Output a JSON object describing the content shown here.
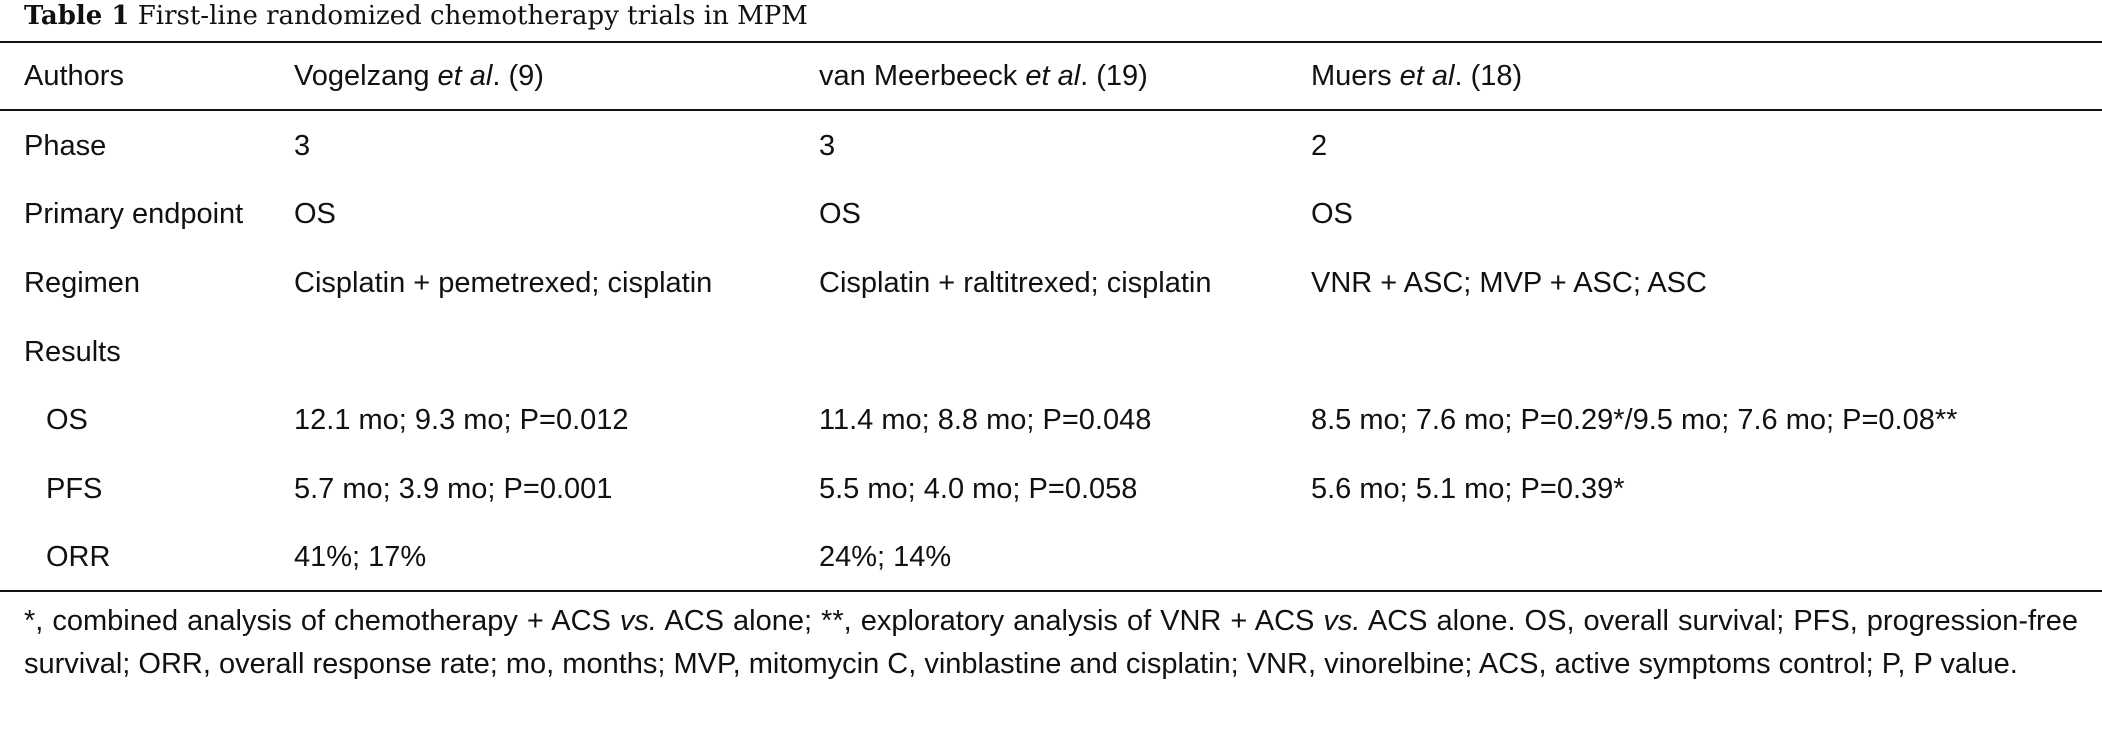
{
  "caption": {
    "label": "Table 1",
    "text": "First-line randomized chemotherapy trials in MPM"
  },
  "table": {
    "header": {
      "authors": "Authors",
      "col1_pre": "Vogelzang ",
      "col1_etal": "et al",
      "col1_post": ". (9)",
      "col2_pre": "van Meerbeeck ",
      "col2_etal": "et al",
      "col2_post": ". (19)",
      "col3_pre": "Muers ",
      "col3_etal": "et al",
      "col3_post": ". (18)"
    },
    "rows": [
      {
        "label": "Phase",
        "v1": "3",
        "v2": "3",
        "v3": "2"
      },
      {
        "label": "Primary endpoint",
        "v1": "OS",
        "v2": "OS",
        "v3": "OS"
      },
      {
        "label": "Regimen",
        "v1": "Cisplatin + pemetrexed; cisplatin",
        "v2": "Cisplatin + raltitrexed; cisplatin",
        "v3": "VNR + ASC; MVP + ASC; ASC"
      },
      {
        "label": "Results",
        "v1": "",
        "v2": "",
        "v3": ""
      },
      {
        "label": "OS",
        "v1": "12.1 mo; 9.3 mo; P=0.012",
        "v2": "11.4 mo; 8.8 mo; P=0.048",
        "v3": "8.5 mo; 7.6 mo; P=0.29*/9.5 mo; 7.6 mo; P=0.08**"
      },
      {
        "label": "PFS",
        "v1": "5.7 mo; 3.9 mo; P=0.001",
        "v2": "5.5 mo; 4.0 mo; P=0.058",
        "v3": "5.6 mo; 5.1 mo; P=0.39*"
      },
      {
        "label": "ORR",
        "v1": "41%; 17%",
        "v2": "24%; 14%",
        "v3": ""
      }
    ]
  },
  "footnote": {
    "p1": "*, combined analysis of chemotherapy + ACS ",
    "vs1": "vs.",
    "p2": " ACS alone; **, exploratory analysis of VNR + ACS ",
    "vs2": "vs.",
    "p3": " ACS alone. OS, overall survival; PFS, progression-free survival; ORR, overall response rate; mo, months; MVP, mitomycin C, vinblastine and cisplatin; VNR, vinorelbine; ACS, active symptoms control; P, P value."
  }
}
